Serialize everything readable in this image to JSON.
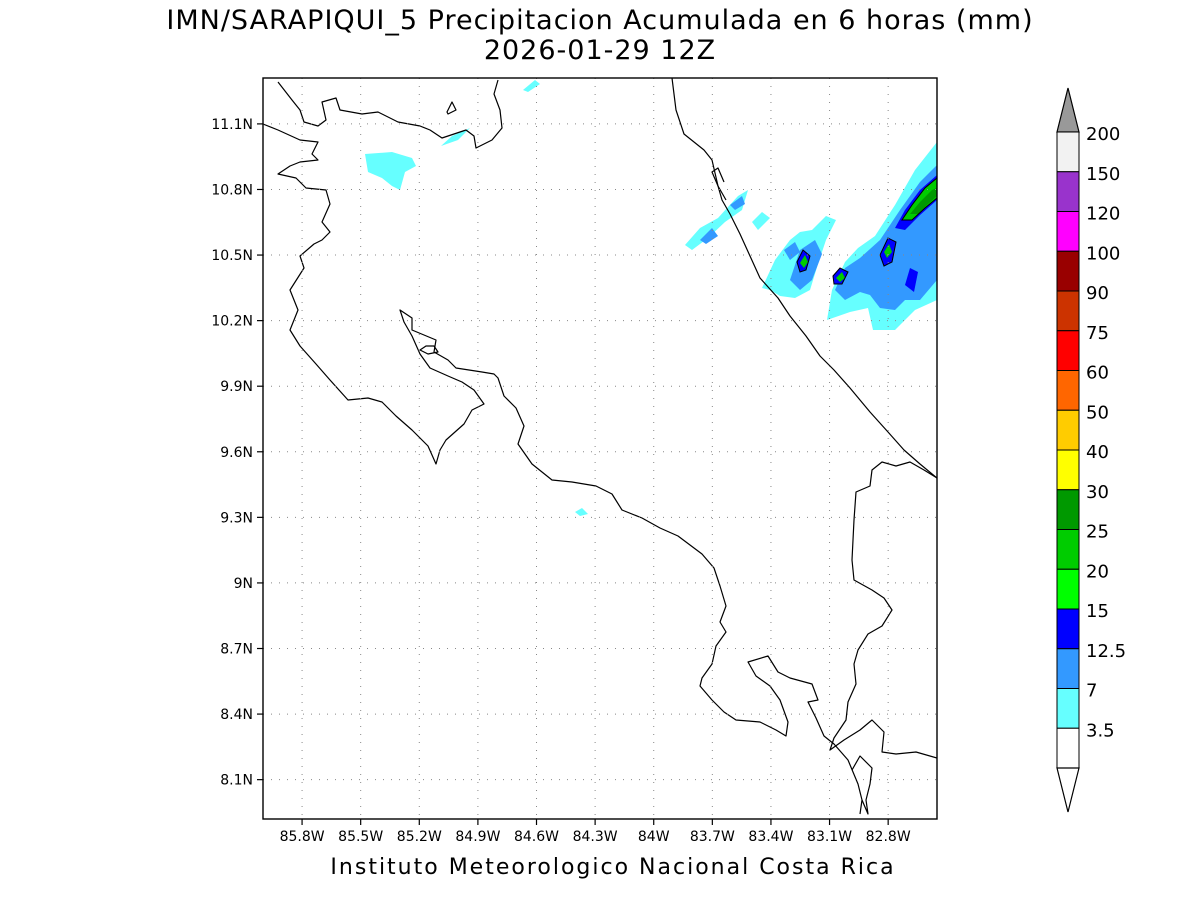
{
  "title": {
    "line1": "IMN/SARAPIQUI_5 Precipitacion Acumulada en 6 horas (mm)",
    "line2": "2026-01-29 12Z"
  },
  "footer": "Instituto Meteorologico Nacional Costa Rica",
  "map": {
    "region": "Costa Rica",
    "lon_range": [
      -86.0,
      -82.55
    ],
    "lat_range": [
      7.92,
      11.31
    ],
    "lon_ticks": [
      {
        "value": -85.8,
        "label": "85.8W"
      },
      {
        "value": -85.5,
        "label": "85.5W"
      },
      {
        "value": -85.2,
        "label": "85.2W"
      },
      {
        "value": -84.9,
        "label": "84.9W"
      },
      {
        "value": -84.6,
        "label": "84.6W"
      },
      {
        "value": -84.3,
        "label": "84.3W"
      },
      {
        "value": -84.0,
        "label": "84W"
      },
      {
        "value": -83.7,
        "label": "83.7W"
      },
      {
        "value": -83.4,
        "label": "83.4W"
      },
      {
        "value": -83.1,
        "label": "83.1W"
      },
      {
        "value": -82.8,
        "label": "82.8W"
      }
    ],
    "lat_ticks": [
      {
        "value": 11.1,
        "label": "11.1N"
      },
      {
        "value": 10.8,
        "label": "10.8N"
      },
      {
        "value": 10.5,
        "label": "10.5N"
      },
      {
        "value": 10.2,
        "label": "10.2N"
      },
      {
        "value": 9.9,
        "label": "9.9N"
      },
      {
        "value": 9.6,
        "label": "9.6N"
      },
      {
        "value": 9.3,
        "label": "9.3N"
      },
      {
        "value": 9.0,
        "label": "9N"
      },
      {
        "value": 8.7,
        "label": "8.7N"
      },
      {
        "value": 8.4,
        "label": "8.4N"
      },
      {
        "value": 8.1,
        "label": "8.1N"
      }
    ],
    "grid": "dotted"
  },
  "colorbar": {
    "units": "mm",
    "levels": [
      {
        "label": "200",
        "color": "#f2f2f2"
      },
      {
        "label": "150",
        "color": "#9933cc"
      },
      {
        "label": "120",
        "color": "#ff00ff"
      },
      {
        "label": "100",
        "color": "#990000"
      },
      {
        "label": "90",
        "color": "#cc3300"
      },
      {
        "label": "75",
        "color": "#ff0000"
      },
      {
        "label": "60",
        "color": "#ff6600"
      },
      {
        "label": "50",
        "color": "#ffcc00"
      },
      {
        "label": "40",
        "color": "#ffff00"
      },
      {
        "label": "30",
        "color": "#009900"
      },
      {
        "label": "25",
        "color": "#00cc00"
      },
      {
        "label": "20",
        "color": "#00ff00"
      },
      {
        "label": "15",
        "color": "#0000ff"
      },
      {
        "label": "12.5",
        "color": "#3399ff"
      },
      {
        "label": "7",
        "color": "#66ffff"
      },
      {
        "label": "3.5",
        "color": "#ffffff"
      }
    ],
    "top_arrow_color": "#999999",
    "bottom_arrow_color": "#ffffff"
  },
  "colors": {
    "light": "#66ffff",
    "medium": "#3399ff",
    "heavy": "#0000ff",
    "very_heavy": "#00cc00",
    "extreme": "#009900"
  }
}
